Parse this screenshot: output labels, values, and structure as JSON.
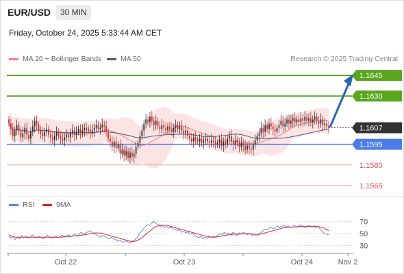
{
  "header": {
    "symbol": "EUR/USD",
    "interval": "30 MIN"
  },
  "datetime": "Friday, October 24, 2025 5:33:44 AM CET",
  "legend": {
    "ma20": "MA 20 + Bollinger Bands",
    "ma50": "MA 50",
    "credit": "Research © 2025 Trading Central"
  },
  "rsi_legend": {
    "rsi": "RSI",
    "ma9": "9MA"
  },
  "colors": {
    "resistance": "#5aa51e",
    "support": "#4a7de8",
    "support_weak": "#d9534f",
    "band_fill": "#fde4e4",
    "ma20": "#f08080",
    "ma50": "#3d5a80",
    "candle_up": "#2e2e2e",
    "candle_down": "#c62828",
    "arrow": "#2a63ad",
    "current": "#333333",
    "rsi": "#5b7fd6",
    "rsi_ma": "#e02020"
  },
  "chart_data": [
    {
      "type": "candlestick",
      "title": "",
      "ylim": [
        1.1558,
        1.1652
      ],
      "x_labels": [
        "Oct 22",
        "Oct 23",
        "Oct 24",
        "Nov 2"
      ],
      "levels": [
        {
          "value": 1.1645,
          "label": "1.1645",
          "kind": "resistance"
        },
        {
          "value": 1.163,
          "label": "1.1630",
          "kind": "resistance"
        },
        {
          "value": 1.1607,
          "label": "1.1607",
          "kind": "current"
        },
        {
          "value": 1.1595,
          "label": "1.1595",
          "kind": "support"
        },
        {
          "value": 1.158,
          "label": "1.1580",
          "kind": "support_weak"
        },
        {
          "value": 1.1565,
          "label": "1.1565",
          "kind": "support_weak"
        }
      ],
      "close": [
        1.161,
        1.1606,
        1.1601,
        1.1605,
        1.1609,
        1.1604,
        1.16,
        1.1603,
        1.1607,
        1.1602,
        1.1599,
        1.1604,
        1.1608,
        1.1612,
        1.1609,
        1.1605,
        1.1603,
        1.1601,
        1.1604,
        1.1606,
        1.1602,
        1.16,
        1.1598,
        1.1601,
        1.1604,
        1.1601,
        1.1599,
        1.1598,
        1.16,
        1.1602,
        1.16,
        1.1603,
        1.1605,
        1.1602,
        1.1604,
        1.1606,
        1.1603,
        1.1605,
        1.1607,
        1.1605,
        1.1606,
        1.1603,
        1.1605,
        1.1607,
        1.1609,
        1.1606,
        1.1607,
        1.1609,
        1.1608,
        1.1604,
        1.1599,
        1.1597,
        1.1593,
        1.1597,
        1.1592,
        1.1595,
        1.1588,
        1.1591,
        1.1587,
        1.159,
        1.1585,
        1.1589,
        1.1586,
        1.1588,
        1.1593,
        1.1596,
        1.1601,
        1.1605,
        1.161,
        1.1613,
        1.1611,
        1.1615,
        1.1612,
        1.1609,
        1.1612,
        1.1608,
        1.1606,
        1.1609,
        1.1607,
        1.1605,
        1.1608,
        1.1606,
        1.1604,
        1.1607,
        1.1609,
        1.1606,
        1.1608,
        1.1605,
        1.1603,
        1.1605,
        1.1601,
        1.1599,
        1.1597,
        1.16,
        1.1598,
        1.1597,
        1.1599,
        1.1596,
        1.1598,
        1.1599,
        1.1597,
        1.1596,
        1.1598,
        1.1597,
        1.1595,
        1.1596,
        1.1598,
        1.1594,
        1.1597,
        1.1595,
        1.1599,
        1.1601,
        1.1597,
        1.1595,
        1.1598,
        1.1596,
        1.1593,
        1.1596,
        1.1594,
        1.1591,
        1.1594,
        1.1592,
        1.1591,
        1.1595,
        1.1598,
        1.1601,
        1.1603,
        1.1607,
        1.1604,
        1.1609,
        1.1606,
        1.161,
        1.1608,
        1.1606,
        1.1604,
        1.1607,
        1.1609,
        1.1612,
        1.1608,
        1.161,
        1.1613,
        1.161,
        1.1612,
        1.1614,
        1.1611,
        1.1613,
        1.1611,
        1.1614,
        1.1612,
        1.1615,
        1.1612,
        1.1614,
        1.1611,
        1.1613,
        1.1615,
        1.1612,
        1.161,
        1.1613,
        1.1609,
        1.161,
        1.1608,
        1.1607
      ],
      "rsi": {
        "ylim": [
          20,
          80
        ],
        "ticks": [
          70,
          50,
          30
        ],
        "values": [
          48,
          42,
          45,
          40,
          44,
          41,
          47,
          43,
          46,
          42,
          44,
          48,
          45,
          43,
          46,
          44,
          41,
          43,
          47,
          45,
          42,
          44,
          46,
          43,
          45,
          47,
          44,
          46,
          48,
          45,
          47,
          49,
          46,
          50,
          52,
          49,
          51,
          53,
          55,
          52,
          50,
          48,
          46,
          44,
          47,
          45,
          43,
          41,
          44,
          42,
          40,
          37,
          39,
          36,
          35,
          38,
          36,
          34,
          37,
          39,
          43,
          48,
          53,
          58,
          62,
          65,
          63,
          68,
          70,
          67,
          65,
          62,
          64,
          60,
          62,
          59,
          61,
          57,
          58,
          55,
          57,
          52,
          54,
          51,
          53,
          49,
          51,
          47,
          45,
          43,
          46,
          41,
          44,
          42,
          45,
          43,
          46,
          44,
          47,
          50,
          48,
          52,
          49,
          51,
          48,
          52,
          50,
          47,
          51,
          49,
          52,
          50,
          48,
          50,
          47,
          49,
          46,
          48,
          51,
          54,
          57,
          56,
          59,
          61,
          58,
          60,
          63,
          60,
          62,
          64,
          61,
          63,
          60,
          62,
          64,
          61,
          63,
          65,
          62,
          60,
          62,
          64,
          61,
          63,
          60,
          62,
          58,
          53,
          50,
          49,
          48
        ],
        "ma9": [
          48,
          46,
          45,
          44,
          44,
          44,
          44,
          44,
          44,
          44,
          44,
          44,
          44,
          44,
          44,
          44,
          44,
          44,
          44,
          44,
          44,
          44,
          44,
          44,
          44,
          44,
          45,
          45,
          45,
          45,
          46,
          46,
          46,
          47,
          47,
          48,
          48,
          49,
          50,
          50,
          51,
          51,
          51,
          51,
          50,
          49,
          48,
          47,
          46,
          45,
          44,
          43,
          42,
          41,
          40,
          39,
          38,
          37,
          37,
          37,
          38,
          40,
          42,
          45,
          48,
          51,
          54,
          57,
          60,
          62,
          63,
          64,
          64,
          64,
          64,
          63,
          62,
          61,
          60,
          59,
          58,
          57,
          56,
          55,
          54,
          53,
          52,
          51,
          50,
          49,
          48,
          47,
          46,
          45,
          45,
          44,
          44,
          44,
          45,
          45,
          46,
          47,
          47,
          48,
          48,
          49,
          49,
          49,
          49,
          50,
          50,
          50,
          50,
          50,
          49,
          49,
          49,
          49,
          49,
          50,
          51,
          52,
          53,
          54,
          55,
          56,
          57,
          58,
          59,
          60,
          60,
          61,
          61,
          61,
          61,
          61,
          62,
          62,
          62,
          62,
          62,
          62,
          62,
          62,
          62,
          62,
          61,
          60,
          59,
          57,
          55
        ]
      }
    }
  ]
}
